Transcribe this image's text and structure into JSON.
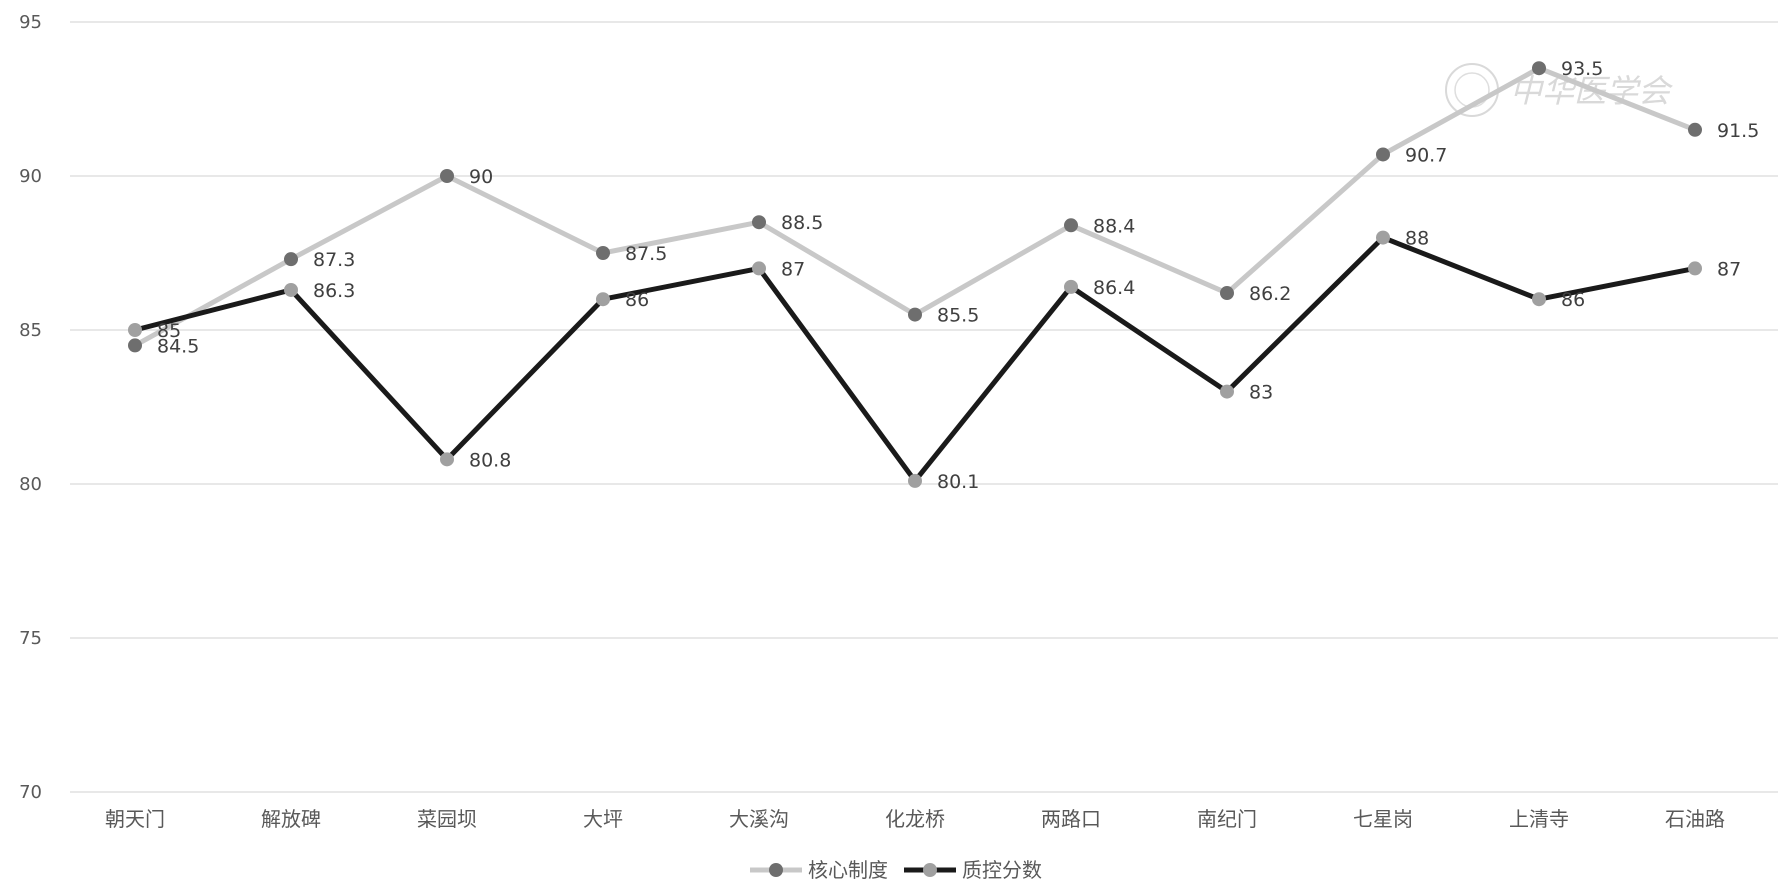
{
  "chart_data": {
    "type": "line",
    "categories": [
      "朝天门",
      "解放碑",
      "菜园坝",
      "大坪",
      "大溪沟",
      "化龙桥",
      "两路口",
      "南纪门",
      "七星岗",
      "上清寺",
      "石油路"
    ],
    "series": [
      {
        "name": "核心制度",
        "values": [
          84.5,
          87.3,
          90,
          87.5,
          88.5,
          85.5,
          88.4,
          86.2,
          90.7,
          93.5,
          91.5
        ],
        "line_color": "#c8c8c8",
        "marker_color": "#6e6e6e"
      },
      {
        "name": "质控分数",
        "values": [
          85,
          86.3,
          80.8,
          86,
          87,
          80.1,
          86.4,
          83,
          88,
          86,
          87
        ],
        "line_color": "#1a1a1a",
        "marker_color": "#a0a0a0"
      }
    ],
    "ylim": [
      70,
      95
    ],
    "yticks": [
      70,
      75,
      80,
      85,
      90,
      95
    ],
    "grid": true,
    "legend_position": "bottom",
    "title": "",
    "xlabel": "",
    "ylabel": ""
  },
  "watermark": {
    "text": "中华医学会"
  }
}
